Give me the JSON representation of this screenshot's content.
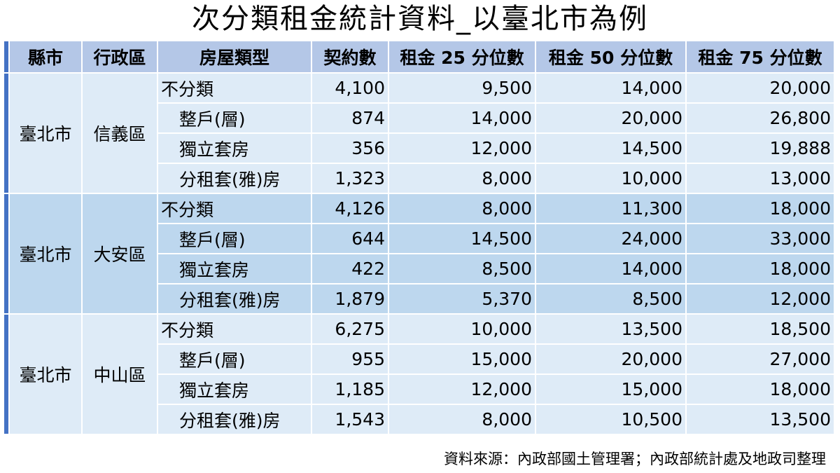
{
  "title": "次分類租金統計資料_以臺北市為例",
  "headers": {
    "county": "縣市",
    "district": "行政區",
    "type": "房屋類型",
    "contracts": "契約數",
    "p25": "租金 25 分位數",
    "p50": "租金 50 分位數",
    "p75": "租金 75 分位數"
  },
  "groups": [
    {
      "county": "臺北市",
      "district": "信義區",
      "rows": [
        {
          "type": "不分類",
          "contracts": "4,100",
          "p25": "9,500",
          "p50": "14,000",
          "p75": "20,000"
        },
        {
          "type": "整戶(層)",
          "contracts": "874",
          "p25": "14,000",
          "p50": "20,000",
          "p75": "26,800"
        },
        {
          "type": "獨立套房",
          "contracts": "356",
          "p25": "12,000",
          "p50": "14,500",
          "p75": "19,888"
        },
        {
          "type": "分租套(雅)房",
          "contracts": "1,323",
          "p25": "8,000",
          "p50": "10,000",
          "p75": "13,000"
        }
      ]
    },
    {
      "county": "臺北市",
      "district": "大安區",
      "rows": [
        {
          "type": "不分類",
          "contracts": "4,126",
          "p25": "8,000",
          "p50": "11,300",
          "p75": "18,000"
        },
        {
          "type": "整戶(層)",
          "contracts": "644",
          "p25": "14,500",
          "p50": "24,000",
          "p75": "33,000"
        },
        {
          "type": "獨立套房",
          "contracts": "422",
          "p25": "8,500",
          "p50": "14,000",
          "p75": "18,000"
        },
        {
          "type": "分租套(雅)房",
          "contracts": "1,879",
          "p25": "5,370",
          "p50": "8,500",
          "p75": "12,000"
        }
      ]
    },
    {
      "county": "臺北市",
      "district": "中山區",
      "rows": [
        {
          "type": "不分類",
          "contracts": "6,275",
          "p25": "10,000",
          "p50": "13,500",
          "p75": "18,500"
        },
        {
          "type": "整戶(層)",
          "contracts": "955",
          "p25": "15,000",
          "p50": "20,000",
          "p75": "27,000"
        },
        {
          "type": "獨立套房",
          "contracts": "1,185",
          "p25": "12,000",
          "p50": "15,000",
          "p75": "18,000"
        },
        {
          "type": "分租套(雅)房",
          "contracts": "1,543",
          "p25": "8,000",
          "p50": "10,500",
          "p75": "13,500"
        }
      ]
    }
  ],
  "source": "資料來源：內政部國土管理署；內政部統計處及地政司整理"
}
